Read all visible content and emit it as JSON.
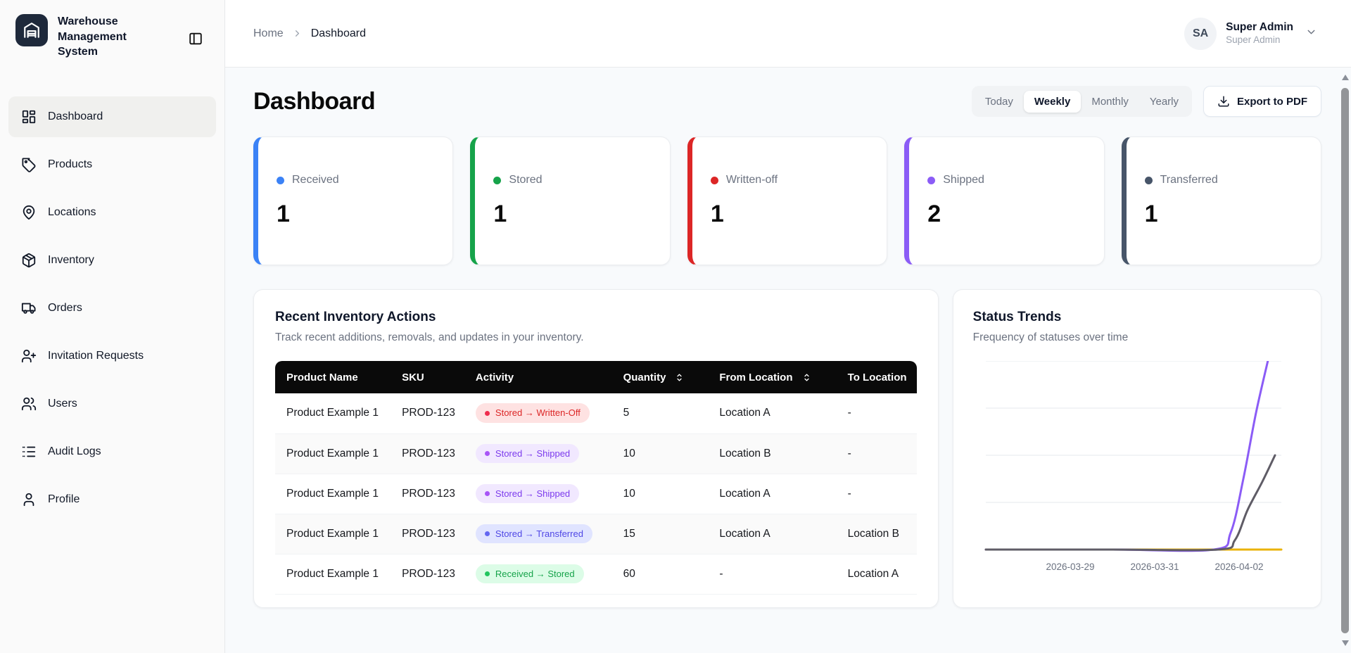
{
  "app": {
    "title": "Warehouse Management System"
  },
  "sidebar": {
    "items": [
      {
        "label": "Dashboard",
        "icon": "layout-dashboard",
        "active": true
      },
      {
        "label": "Products",
        "icon": "tag",
        "active": false
      },
      {
        "label": "Locations",
        "icon": "map-pin",
        "active": false
      },
      {
        "label": "Inventory",
        "icon": "package",
        "active": false
      },
      {
        "label": "Orders",
        "icon": "truck",
        "active": false
      },
      {
        "label": "Invitation Requests",
        "icon": "user-plus",
        "active": false
      },
      {
        "label": "Users",
        "icon": "users",
        "active": false
      },
      {
        "label": "Audit Logs",
        "icon": "logs",
        "active": false
      },
      {
        "label": "Profile",
        "icon": "user",
        "active": false
      }
    ]
  },
  "header": {
    "breadcrumb": {
      "home": "Home",
      "current": "Dashboard"
    },
    "user": {
      "initials": "SA",
      "name": "Super Admin",
      "role": "Super Admin"
    }
  },
  "page": {
    "title": "Dashboard",
    "filters": [
      {
        "label": "Today",
        "active": false
      },
      {
        "label": "Weekly",
        "active": true
      },
      {
        "label": "Monthly",
        "active": false
      },
      {
        "label": "Yearly",
        "active": false
      }
    ],
    "export_label": "Export to PDF"
  },
  "stats": [
    {
      "label": "Received",
      "value": "1",
      "color": "#3b82f6"
    },
    {
      "label": "Stored",
      "value": "1",
      "color": "#16a34a"
    },
    {
      "label": "Written-off",
      "value": "1",
      "color": "#dc2626"
    },
    {
      "label": "Shipped",
      "value": "2",
      "color": "#8b5cf6"
    },
    {
      "label": "Transferred",
      "value": "1",
      "color": "#475569"
    }
  ],
  "recent": {
    "title": "Recent Inventory Actions",
    "subtitle": "Track recent additions, removals, and updates in your inventory.",
    "columns": [
      {
        "label": "Product Name",
        "sortable": false,
        "width": "18%"
      },
      {
        "label": "SKU",
        "sortable": false,
        "width": "11.5%"
      },
      {
        "label": "Activity",
        "sortable": false,
        "width": "23%"
      },
      {
        "label": "Quantity",
        "sortable": true,
        "width": "15%"
      },
      {
        "label": "From Location",
        "sortable": true,
        "width": "20%"
      },
      {
        "label": "To Location",
        "sortable": false,
        "width": "12.5%"
      }
    ],
    "rows": [
      {
        "product": "Product Example 1",
        "sku": "PROD-123",
        "activity": "Stored → Written-Off",
        "variant": "red",
        "quantity": "5",
        "from": "Location A",
        "to": "-"
      },
      {
        "product": "Product Example 1",
        "sku": "PROD-123",
        "activity": "Stored → Shipped",
        "variant": "purple",
        "quantity": "10",
        "from": "Location B",
        "to": "-"
      },
      {
        "product": "Product Example 1",
        "sku": "PROD-123",
        "activity": "Stored → Shipped",
        "variant": "purple",
        "quantity": "10",
        "from": "Location A",
        "to": "-"
      },
      {
        "product": "Product Example 1",
        "sku": "PROD-123",
        "activity": "Stored → Transferred",
        "variant": "indigo",
        "quantity": "15",
        "from": "Location A",
        "to": "Location B"
      },
      {
        "product": "Product Example 1",
        "sku": "PROD-123",
        "activity": "Received → Stored",
        "variant": "green",
        "quantity": "60",
        "from": "-",
        "to": "Location A"
      }
    ]
  },
  "trends": {
    "title": "Status Trends",
    "subtitle": "Frequency of statuses over time"
  },
  "chart_data": {
    "type": "line",
    "title": "Status Trends",
    "xlabel": "",
    "ylabel": "",
    "ylim": [
      0,
      2
    ],
    "grid_values": [
      0.5,
      1,
      1.5,
      2
    ],
    "legend": "none",
    "x_start_date": "2026-03-27",
    "x_domain_days": [
      0,
      7
    ],
    "x_ticks": [
      {
        "day": 2,
        "label": "2026-03-29"
      },
      {
        "day": 4,
        "label": "2026-03-31"
      },
      {
        "day": 6,
        "label": "2026-04-02"
      }
    ],
    "series": [
      {
        "name": "amber-line",
        "color": "#eab308",
        "points": [
          [
            0,
            0
          ],
          [
            7,
            0
          ]
        ]
      },
      {
        "name": "purple-line",
        "color": "#8b5cf6",
        "points": [
          [
            0,
            0
          ],
          [
            3,
            0
          ],
          [
            5.4,
            0
          ],
          [
            5.8,
            0.18
          ],
          [
            6.1,
            0.75
          ],
          [
            6.4,
            1.45
          ],
          [
            6.68,
            2
          ]
        ]
      },
      {
        "name": "gray-line",
        "color": "#5f5c66",
        "points": [
          [
            0,
            0
          ],
          [
            3,
            0
          ],
          [
            5.5,
            0
          ],
          [
            5.9,
            0.1
          ],
          [
            6.2,
            0.42
          ],
          [
            6.55,
            0.72
          ],
          [
            6.85,
            1
          ]
        ]
      }
    ]
  }
}
